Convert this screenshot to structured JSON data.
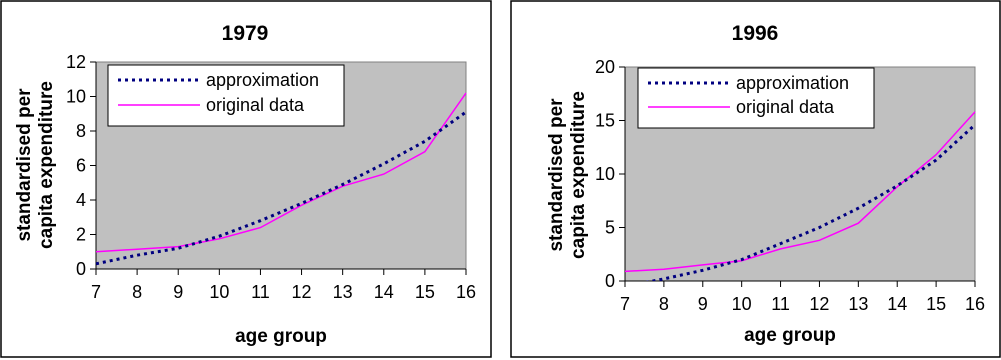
{
  "chart_data": [
    {
      "type": "line",
      "title": "1979",
      "xlabel": "age group",
      "ylabel": "standardised per capita expenditure",
      "ylabel_lines": [
        "standardised per",
        "capita expenditure"
      ],
      "x": [
        7,
        8,
        9,
        10,
        11,
        12,
        13,
        14,
        15,
        16
      ],
      "xlim": [
        7,
        16
      ],
      "ylim": [
        0,
        12
      ],
      "y_ticks": [
        0,
        2,
        4,
        6,
        8,
        10,
        12
      ],
      "grid": false,
      "legend_position": "top-left",
      "series": [
        {
          "name": "approximation",
          "style": "dotted",
          "color": "#000080",
          "values": [
            0.3,
            0.8,
            1.2,
            1.9,
            2.8,
            3.8,
            4.9,
            6.1,
            7.4,
            9.1
          ]
        },
        {
          "name": "original data",
          "style": "solid",
          "color": "#FF00FF",
          "values": [
            1.0,
            1.15,
            1.3,
            1.75,
            2.4,
            3.7,
            4.8,
            5.5,
            6.8,
            10.2
          ]
        }
      ]
    },
    {
      "type": "line",
      "title": "1996",
      "xlabel": "age group",
      "ylabel": "standardised per capita expenditure",
      "ylabel_lines": [
        "standardised per",
        "capita expenditure"
      ],
      "x": [
        7,
        8,
        9,
        10,
        11,
        12,
        13,
        14,
        15,
        16
      ],
      "xlim": [
        7,
        16
      ],
      "ylim": [
        0,
        20
      ],
      "y_ticks": [
        0,
        5,
        10,
        15,
        20
      ],
      "grid": false,
      "legend_position": "top-left",
      "series": [
        {
          "name": "approximation",
          "style": "dotted",
          "color": "#000080",
          "values": [
            -0.5,
            0.2,
            1.0,
            2.0,
            3.5,
            5.0,
            6.8,
            8.9,
            11.3,
            14.6
          ]
        },
        {
          "name": "original data",
          "style": "solid",
          "color": "#FF00FF",
          "values": [
            0.9,
            1.1,
            1.5,
            1.9,
            3.0,
            3.8,
            5.4,
            8.8,
            11.8,
            15.8
          ]
        }
      ]
    }
  ]
}
